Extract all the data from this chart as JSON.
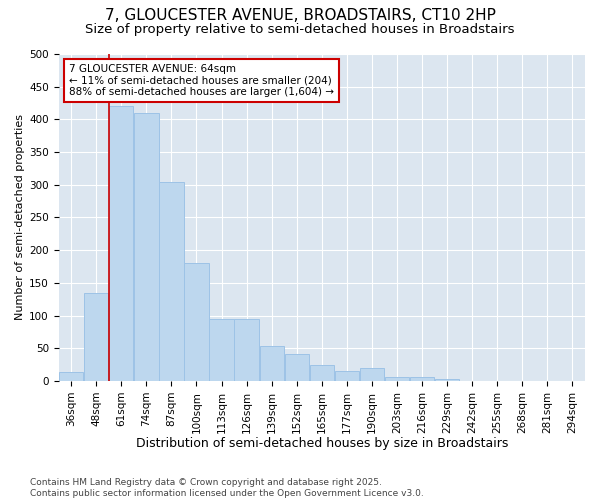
{
  "title": "7, GLOUCESTER AVENUE, BROADSTAIRS, CT10 2HP",
  "subtitle": "Size of property relative to semi-detached houses in Broadstairs",
  "xlabel": "Distribution of semi-detached houses by size in Broadstairs",
  "ylabel": "Number of semi-detached properties",
  "categories": [
    "36sqm",
    "48sqm",
    "61sqm",
    "74sqm",
    "87sqm",
    "100sqm",
    "113sqm",
    "126sqm",
    "139sqm",
    "152sqm",
    "165sqm",
    "177sqm",
    "190sqm",
    "203sqm",
    "216sqm",
    "229sqm",
    "242sqm",
    "255sqm",
    "268sqm",
    "281sqm",
    "294sqm"
  ],
  "bar_heights": [
    14,
    135,
    420,
    410,
    305,
    180,
    95,
    95,
    53,
    42,
    25,
    15,
    20,
    6,
    6,
    3,
    0,
    0,
    0,
    0,
    0
  ],
  "bar_color": "#bdd7ee",
  "bar_edge_color": "#9dc3e6",
  "vline_x": 2.5,
  "vline_color": "#cc0000",
  "annotation_text": "7 GLOUCESTER AVENUE: 64sqm\n← 11% of semi-detached houses are smaller (204)\n88% of semi-detached houses are larger (1,604) →",
  "annotation_box_facecolor": "#ffffff",
  "annotation_box_edgecolor": "#cc0000",
  "ylim": [
    0,
    500
  ],
  "yticks": [
    0,
    50,
    100,
    150,
    200,
    250,
    300,
    350,
    400,
    450,
    500
  ],
  "plot_bg": "#dce6f0",
  "fig_bg": "#ffffff",
  "footer": "Contains HM Land Registry data © Crown copyright and database right 2025.\nContains public sector information licensed under the Open Government Licence v3.0.",
  "title_fontsize": 11,
  "subtitle_fontsize": 9.5,
  "xlabel_fontsize": 9,
  "ylabel_fontsize": 8,
  "tick_fontsize": 7.5,
  "annotation_fontsize": 7.5,
  "footer_fontsize": 6.5
}
